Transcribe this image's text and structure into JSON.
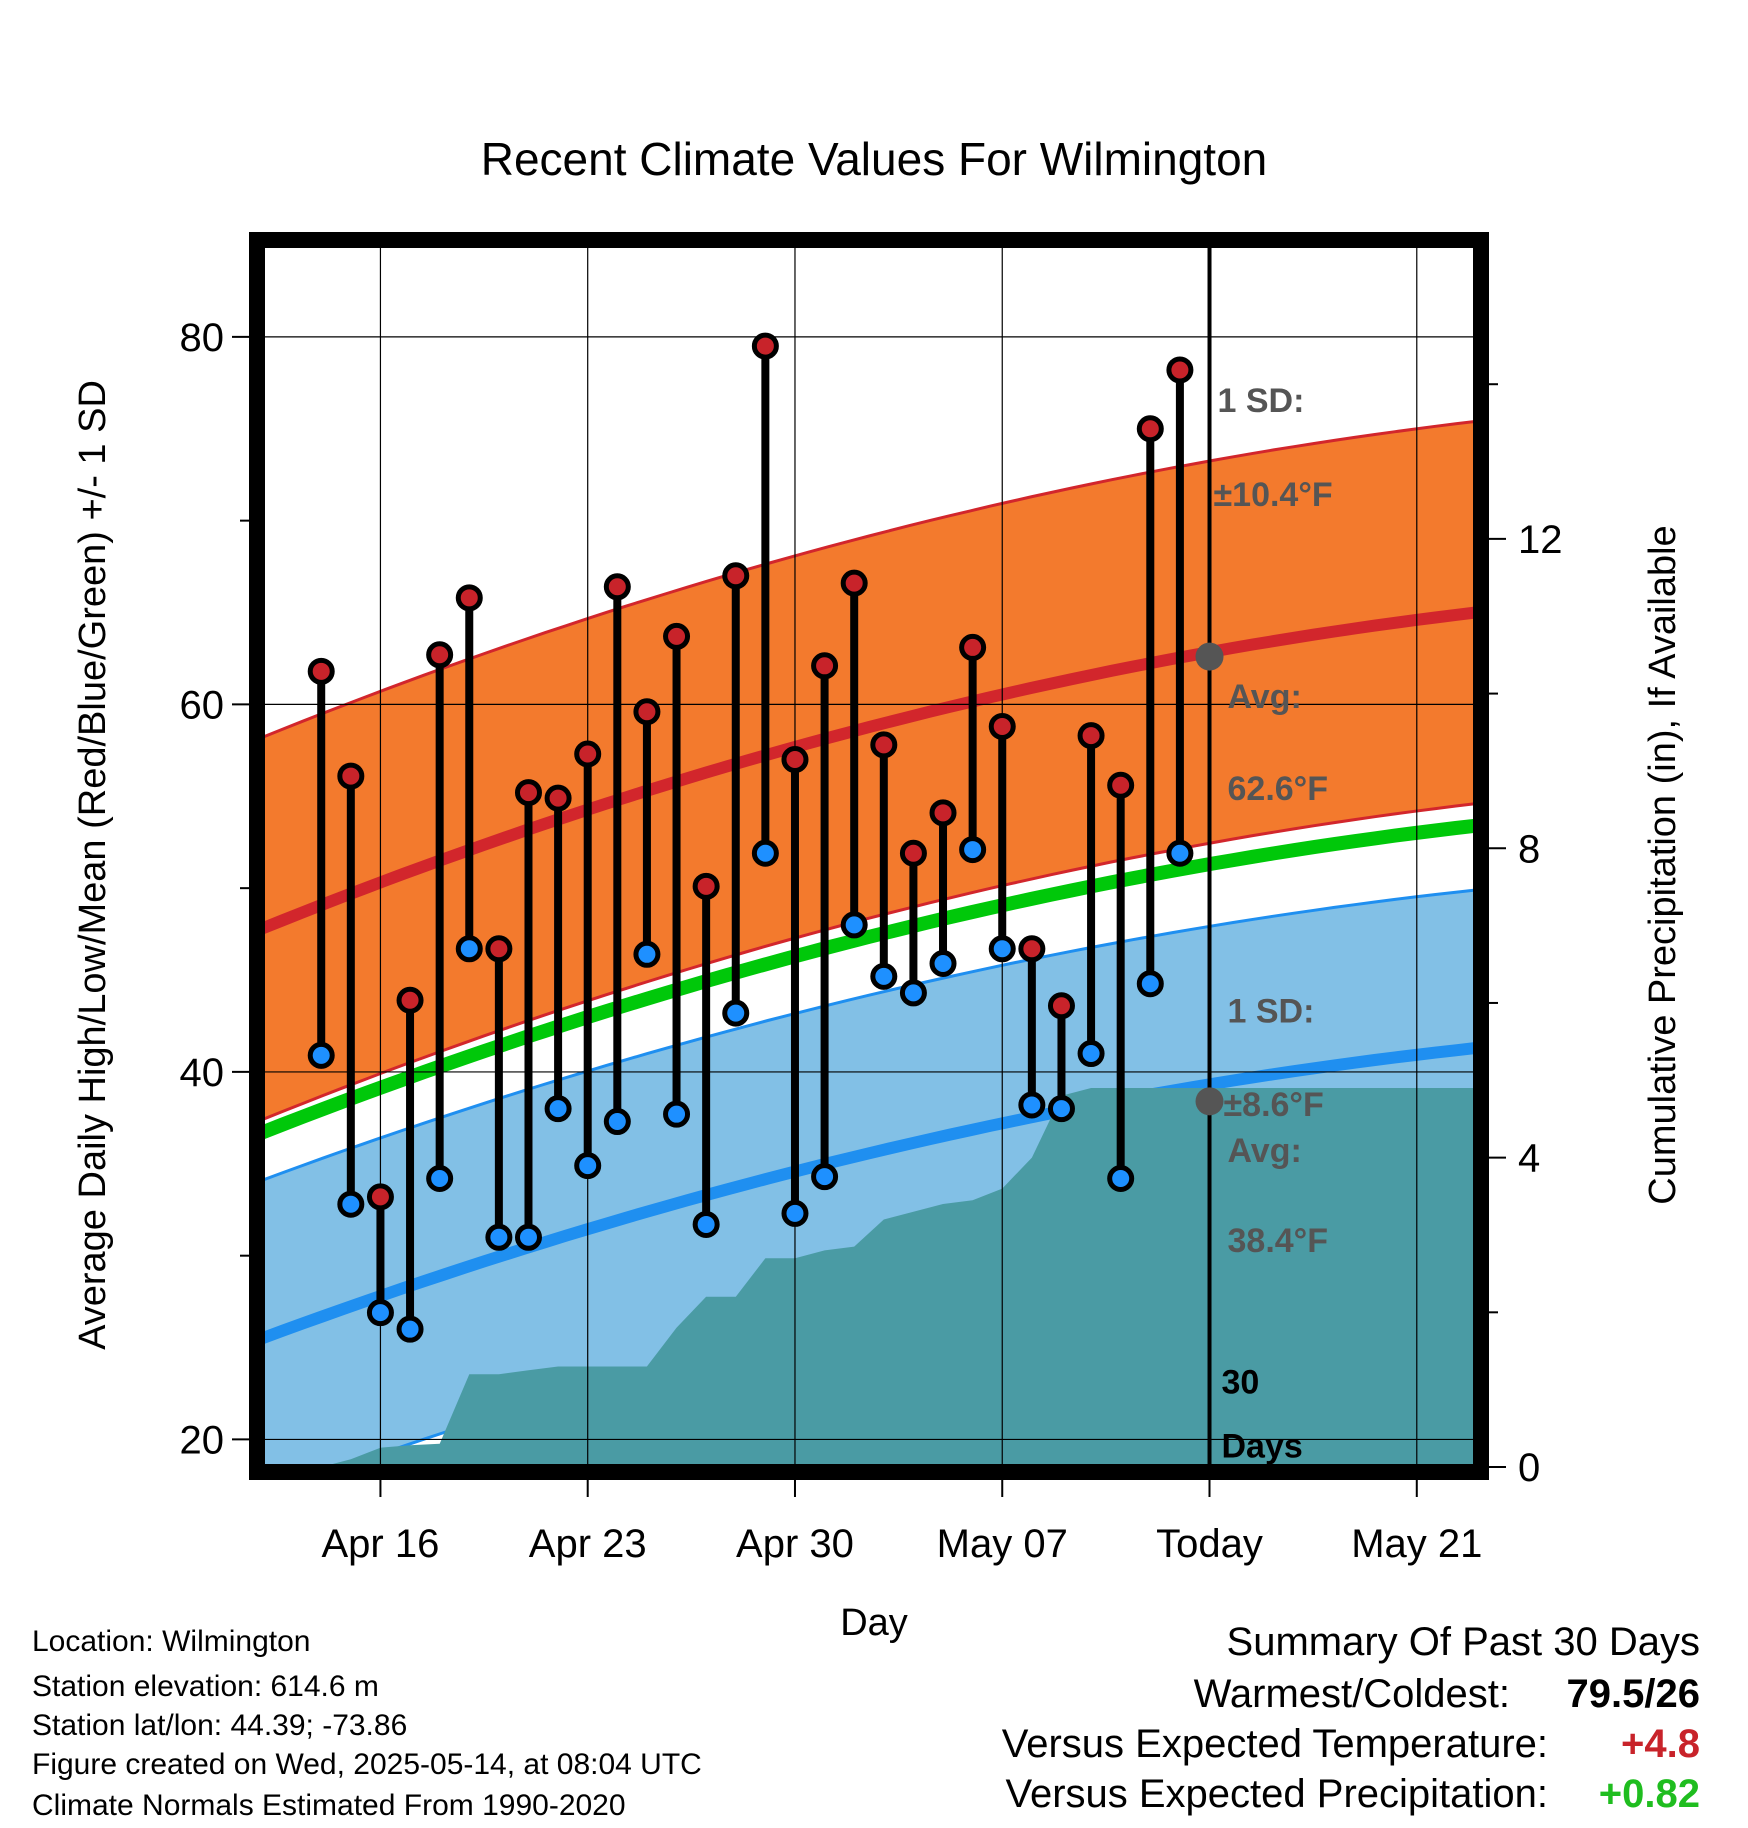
{
  "chart_data": {
    "type": "line",
    "title": "Recent Climate Values For Wilmington",
    "xlabel": "Day",
    "ylabel": "Average Daily High/Low/Mean (Red/Blue/Green) +/- 1 SD",
    "y2label": "Cumulative Precipitation (in), If Available",
    "ylim": [
      18.5,
      85
    ],
    "y2lim": [
      0,
      15.8
    ],
    "yticks": [
      "20",
      "40",
      "60",
      "80"
    ],
    "y2ticks": [
      "0",
      "4",
      "8",
      "12"
    ],
    "xticks": [
      "Apr 16",
      "Apr 23",
      "Apr 30",
      "May 07",
      "Today",
      "May 21"
    ],
    "xlim": [
      "2025-04-12",
      "2025-05-23"
    ],
    "today": "2025-05-14",
    "days": [
      "2025-04-14",
      "2025-04-15",
      "2025-04-16",
      "2025-04-17",
      "2025-04-18",
      "2025-04-19",
      "2025-04-20",
      "2025-04-21",
      "2025-04-22",
      "2025-04-23",
      "2025-04-24",
      "2025-04-25",
      "2025-04-26",
      "2025-04-27",
      "2025-04-28",
      "2025-04-29",
      "2025-04-30",
      "2025-05-01",
      "2025-05-02",
      "2025-05-03",
      "2025-05-04",
      "2025-05-05",
      "2025-05-06",
      "2025-05-07",
      "2025-05-08",
      "2025-05-09",
      "2025-05-10",
      "2025-05-11",
      "2025-05-12",
      "2025-05-13"
    ],
    "series": [
      {
        "name": "High",
        "color": "#c8232a",
        "values": [
          61.8,
          56.1,
          33.2,
          43.9,
          62.7,
          65.8,
          46.7,
          55.2,
          54.9,
          57.3,
          66.4,
          59.6,
          63.7,
          50.1,
          67.0,
          79.5,
          57.0,
          62.1,
          66.6,
          57.8,
          51.9,
          54.1,
          63.1,
          58.8,
          46.7,
          43.6,
          58.3,
          55.6,
          75.0,
          78.2
        ]
      },
      {
        "name": "Low",
        "color": "#1e90ff",
        "values": [
          40.9,
          32.8,
          26.9,
          26.0,
          34.2,
          46.7,
          31.0,
          31.0,
          38.0,
          34.9,
          37.3,
          46.4,
          37.7,
          31.7,
          43.2,
          51.9,
          32.3,
          34.3,
          48.0,
          45.2,
          44.3,
          45.9,
          52.1,
          46.7,
          38.2,
          38.0,
          41.0,
          34.2,
          44.8,
          51.9
        ]
      }
    ],
    "normal_high": {
      "x": [
        "2025-04-12",
        "2025-05-23"
      ],
      "values": [
        47.8,
        65.0
      ],
      "sd": 10.4,
      "today_avg": 62.6
    },
    "normal_low": {
      "x": [
        "2025-04-12",
        "2025-05-23"
      ],
      "values": [
        25.5,
        41.3
      ],
      "sd": 8.6,
      "today_avg": 38.4
    },
    "normal_mean": {
      "x": [
        "2025-04-12",
        "2025-05-23"
      ],
      "values": [
        36.7,
        53.4
      ]
    },
    "precip_cumulative": {
      "x": [
        "2025-04-12",
        "2025-04-14",
        "2025-04-15",
        "2025-04-16",
        "2025-04-17",
        "2025-04-18",
        "2025-04-19",
        "2025-04-20",
        "2025-04-21",
        "2025-04-22",
        "2025-04-23",
        "2025-04-24",
        "2025-04-25",
        "2025-04-26",
        "2025-04-27",
        "2025-04-28",
        "2025-04-29",
        "2025-04-30",
        "2025-05-01",
        "2025-05-02",
        "2025-05-03",
        "2025-05-04",
        "2025-05-05",
        "2025-05-06",
        "2025-05-07",
        "2025-05-08",
        "2025-05-09",
        "2025-05-10",
        "2025-05-13",
        "2025-05-23"
      ],
      "values": [
        0.0,
        0.0,
        0.1,
        0.25,
        0.28,
        0.3,
        1.2,
        1.2,
        1.25,
        1.3,
        1.3,
        1.3,
        1.3,
        1.8,
        2.2,
        2.2,
        2.7,
        2.7,
        2.8,
        2.85,
        3.2,
        3.3,
        3.4,
        3.45,
        3.6,
        4.0,
        4.8,
        4.9,
        4.9,
        4.9
      ]
    },
    "annotations": {
      "high_sd_label": "1 SD:",
      "high_sd_value": "±10.4°F",
      "high_avg_label": "Avg:",
      "high_avg_value": "62.6°F",
      "low_sd_label": "1 SD:",
      "low_sd_value": "±8.6°F",
      "low_avg_label": "Avg:",
      "low_avg_value": "38.4°F",
      "days_count": "30",
      "days_label": "Days"
    },
    "grid": true,
    "colors": {
      "high_band": "#f37a2d",
      "high_line": "#d2262c",
      "low_band": "#82c0e6",
      "low_line": "#1f8ff0",
      "mean_line": "#00c80a",
      "precip": "#4a9ba4",
      "today_marker": "#555555"
    }
  },
  "footer": {
    "location": "Location: Wilmington",
    "elevation": "Station elevation: 614.6 m",
    "latlon": "Station lat/lon: 44.39; -73.86",
    "created": "Figure created on Wed, 2025-05-14, at 08:04 UTC",
    "normals": "Climate Normals Estimated From 1990-2020"
  },
  "summary": {
    "title": "Summary Of Past 30 Days",
    "warmest_label": "Warmest/Coldest:",
    "warmest_value": "79.5/26",
    "temp_label": "Versus Expected Temperature:",
    "temp_value": "+4.8",
    "temp_color": "#c8232a",
    "precip_label": "Versus Expected Precipitation:",
    "precip_value": "+0.82",
    "precip_color": "#1fbd1f"
  }
}
